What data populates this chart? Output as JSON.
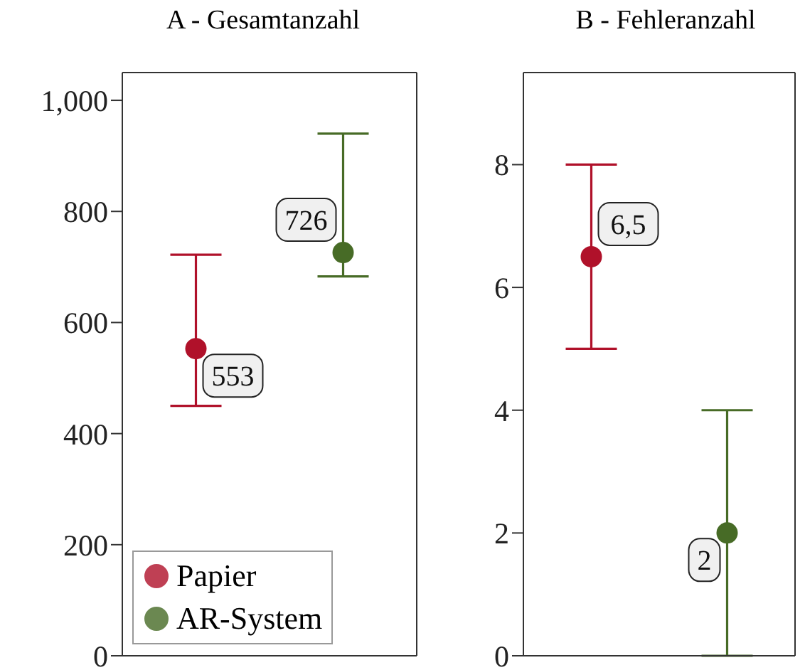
{
  "chart_data": [
    {
      "type": "scatter",
      "title": "A - Gesamtanzahl",
      "categories": [
        null,
        null
      ],
      "ylim": [
        0,
        1050
      ],
      "yticks": [
        0,
        200,
        400,
        600,
        800,
        {
          "value": 1000,
          "label": "1,000"
        }
      ],
      "legend": "bottom left",
      "marker": "circle",
      "series": [
        {
          "name": "Papier",
          "color": "#b0112a",
          "values": [
            553,
            null
          ],
          "errors": [
            [
              450,
              722
            ],
            null
          ],
          "value_labels": [
            "553",
            null
          ]
        },
        {
          "name": "AR-System",
          "color": "#476b26",
          "values": [
            null,
            726
          ],
          "errors": [
            null,
            [
              683,
              940
            ]
          ],
          "value_labels": [
            null,
            "726"
          ]
        }
      ]
    },
    {
      "type": "scatter",
      "title": "B - Fehleranzahl",
      "categories": [
        null,
        null
      ],
      "ylim": [
        0,
        9.5
      ],
      "yticks": [
        0,
        2,
        4,
        6,
        8
      ],
      "legend": false,
      "marker": "circle",
      "series": [
        {
          "color": "#b0112a",
          "values": [
            6.5,
            null
          ],
          "errors": [
            [
              5,
              8
            ],
            null
          ],
          "value_labels": [
            "6,5",
            null
          ]
        },
        {
          "color": "#476b26",
          "values": [
            null,
            2
          ],
          "errors": [
            null,
            [
              0,
              4
            ]
          ],
          "value_labels": [
            null,
            "2"
          ]
        }
      ]
    }
  ]
}
